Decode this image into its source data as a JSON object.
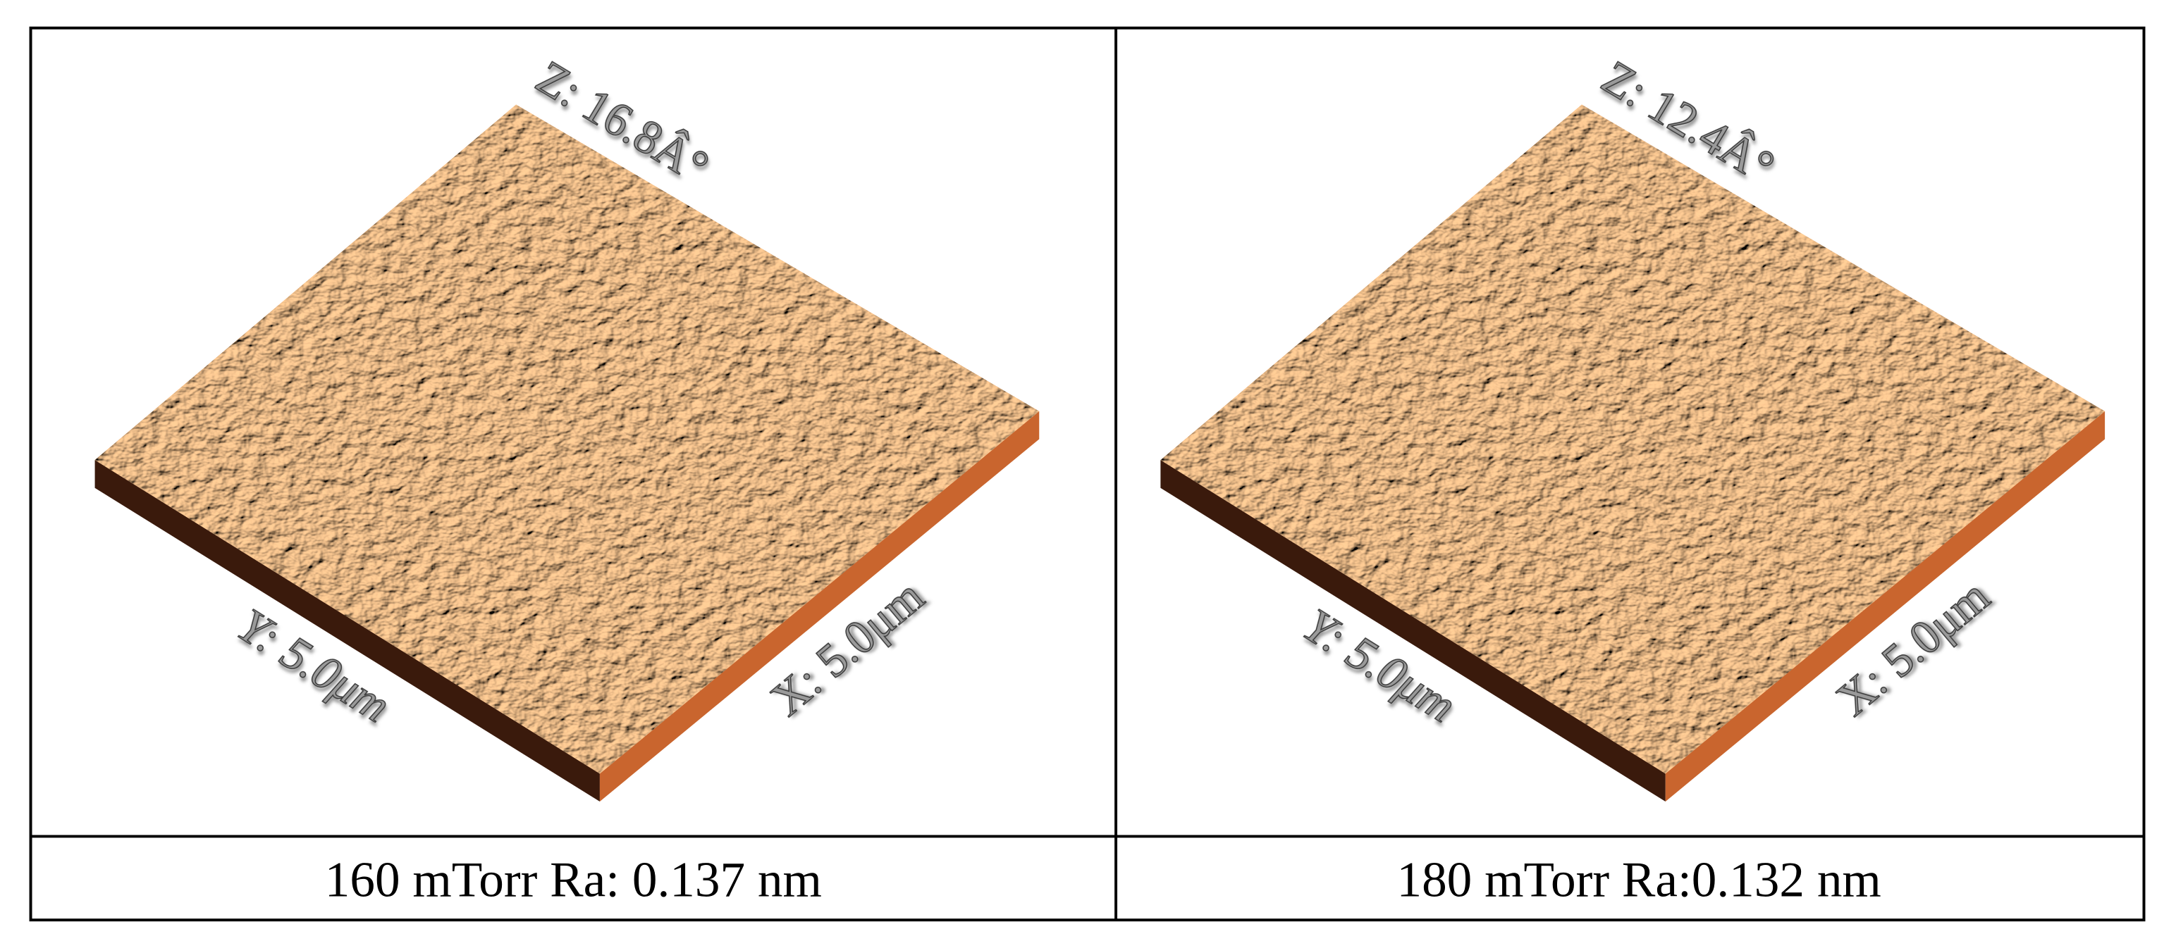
{
  "panels": [
    {
      "z_label": "Z: 16.8Â°",
      "y_label": "Y: 5.0μm",
      "x_label": "X: 5.0μm",
      "caption": "160 mTorr Ra: 0.137 nm"
    },
    {
      "z_label": "Z: 12.4Â°",
      "y_label": "Y: 5.0μm",
      "x_label": "X: 5.0μm",
      "caption": "180 mTorr Ra:0.132 nm"
    }
  ]
}
